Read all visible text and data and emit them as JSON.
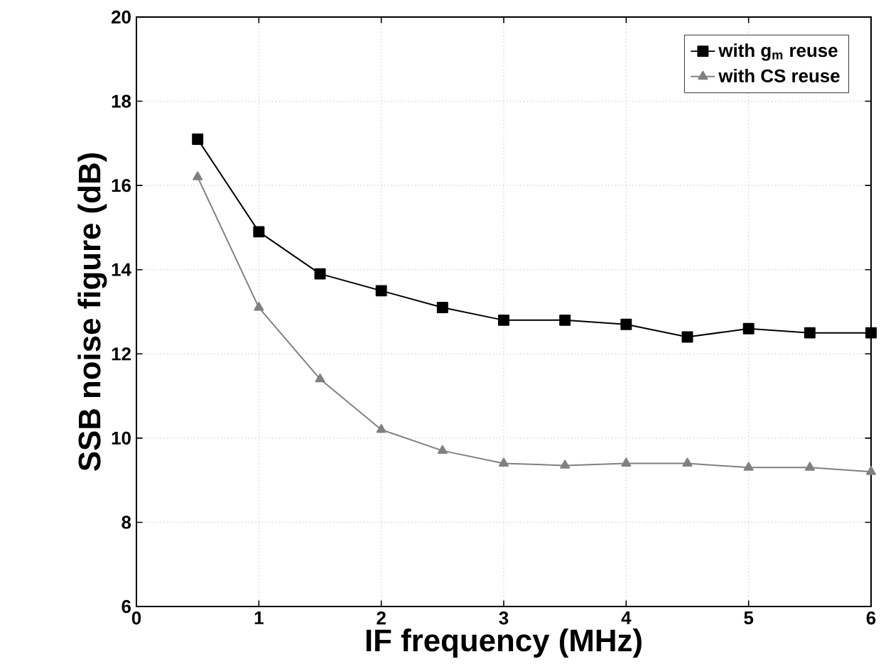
{
  "chart_data": {
    "type": "line",
    "xlabel": "IF frequency (MHz)",
    "ylabel": "SSB noise figure (dB)",
    "x": [
      0.5,
      1,
      1.5,
      2,
      2.5,
      3,
      3.5,
      4,
      4.5,
      5,
      5.5,
      6
    ],
    "series": [
      {
        "name": "with g$_{m}$ reuse",
        "color": "#000000",
        "marker": "square",
        "values": [
          17.1,
          14.9,
          13.9,
          13.5,
          13.1,
          12.8,
          12.8,
          12.7,
          12.4,
          12.6,
          12.5,
          12.5
        ]
      },
      {
        "name": "with CS reuse",
        "color": "#808080",
        "marker": "triangle",
        "values": [
          16.2,
          13.1,
          11.4,
          10.2,
          9.7,
          9.4,
          9.35,
          9.4,
          9.4,
          9.3,
          9.3,
          9.2
        ]
      }
    ],
    "xlim": [
      0,
      6
    ],
    "ylim": [
      6,
      20
    ],
    "xticks": [
      0,
      1,
      2,
      3,
      4,
      5,
      6
    ],
    "yticks": [
      6,
      8,
      10,
      12,
      14,
      16,
      18,
      20
    ],
    "grid": true,
    "legend": "top right",
    "line_style": "solid"
  }
}
